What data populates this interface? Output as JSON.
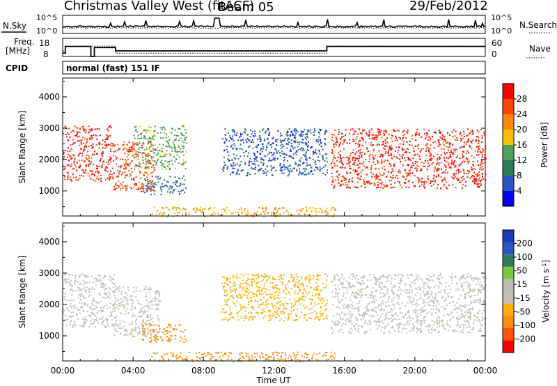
{
  "header": {
    "station": "Christmas Valley West (fitACF)",
    "beam": "Beam 05",
    "date": "29/Feb/2012"
  },
  "nsky_panel": {
    "left_label": "N.Sky",
    "right_label": "N.Search",
    "left_ticks": [
      "10^5",
      "10^0"
    ],
    "right_ticks": [
      "10^5",
      "10^0"
    ]
  },
  "freq_panel": {
    "left_label_1": "Freq.",
    "left_label_2": "[MHz]",
    "right_label": "Nave",
    "left_ticks": [
      "18",
      "8"
    ],
    "right_ticks": [
      "60",
      "0"
    ]
  },
  "cpid": {
    "label": "CPID",
    "value": "normal (fast) 151 IF"
  },
  "colors": {
    "power": [
      "#0000ff",
      "#2b56c8",
      "#2f7d55",
      "#4fa05a",
      "#f5c200",
      "#ff8800",
      "#ff4400",
      "#ff0000"
    ],
    "velocity": [
      "#ff0000",
      "#ff5500",
      "#ff8c00",
      "#ffb000",
      "#c0c0b8",
      "#bcbcb4",
      "#78c83c",
      "#2f7d55",
      "#2b56c8",
      "#1a3cb4"
    ]
  },
  "chart_data": [
    {
      "type": "heatmap",
      "title": "Power",
      "ylabel": "Slant Range [km]",
      "y_ticks": [
        "1000",
        "2000",
        "3000",
        "4000"
      ],
      "ylim": [
        200,
        4600
      ],
      "xlim": [
        0,
        24
      ],
      "colorbar_label": "Power [dB]",
      "colorbar_ticks": [
        "4",
        "8",
        "12",
        "16",
        "20",
        "24",
        "28"
      ],
      "colorbar_range": [
        0,
        32
      ],
      "regions": [
        {
          "name": "early-bands",
          "x": [
            0.0,
            2.8
          ],
          "y": [
            1300,
            3100
          ],
          "level": 28
        },
        {
          "name": "descending-band",
          "x": [
            2.8,
            5.2
          ],
          "y": [
            1000,
            2600
          ],
          "level": 26
        },
        {
          "name": "greenish-band",
          "x": [
            4.0,
            7.0
          ],
          "y": [
            1700,
            3100
          ],
          "level": 14
        },
        {
          "name": "blue-patch",
          "x": [
            4.5,
            7.0
          ],
          "y": [
            900,
            1500
          ],
          "level": 8
        },
        {
          "name": "afternoon-arc",
          "x": [
            9.0,
            15.0
          ],
          "y": [
            1500,
            3000
          ],
          "level": 6
        },
        {
          "name": "late-red-bands",
          "x": [
            15.2,
            24.0
          ],
          "y": [
            1100,
            3000
          ],
          "level": 28
        },
        {
          "name": "near-range",
          "x": [
            5.0,
            15.5
          ],
          "y": [
            200,
            500
          ],
          "level": 20
        }
      ]
    },
    {
      "type": "heatmap",
      "title": "Velocity",
      "ylabel": "Slant Range [km]",
      "y_ticks": [
        "1000",
        "2000",
        "3000",
        "4000"
      ],
      "ylim": [
        200,
        4600
      ],
      "xlim": [
        0,
        24
      ],
      "xlabel": "Time UT",
      "x_ticks": [
        "00:00",
        "04:00",
        "08:00",
        "12:00",
        "16:00",
        "20:00",
        "00:00"
      ],
      "colorbar_label": "Velocity [m s^-1]",
      "colorbar_ticks": [
        "-200",
        "-100",
        "-50",
        "-15",
        "15",
        "50",
        "100",
        "200"
      ],
      "colorbar_range": [
        -250,
        250
      ],
      "regions": [
        {
          "name": "early-grey",
          "x": [
            0.0,
            3.0
          ],
          "y": [
            1300,
            3000
          ],
          "level": 0
        },
        {
          "name": "descending-grey",
          "x": [
            2.8,
            5.5
          ],
          "y": [
            1000,
            2600
          ],
          "level": 0
        },
        {
          "name": "orange-patch",
          "x": [
            4.5,
            7.0
          ],
          "y": [
            800,
            1400
          ],
          "level": -80
        },
        {
          "name": "afternoon-arc",
          "x": [
            9.0,
            15.0
          ],
          "y": [
            1500,
            3000
          ],
          "level": -30
        },
        {
          "name": "late-grey-bands",
          "x": [
            15.2,
            24.0
          ],
          "y": [
            1100,
            3000
          ],
          "level": 0
        },
        {
          "name": "near-range",
          "x": [
            5.0,
            15.5
          ],
          "y": [
            200,
            500
          ],
          "level": -60
        }
      ]
    }
  ]
}
